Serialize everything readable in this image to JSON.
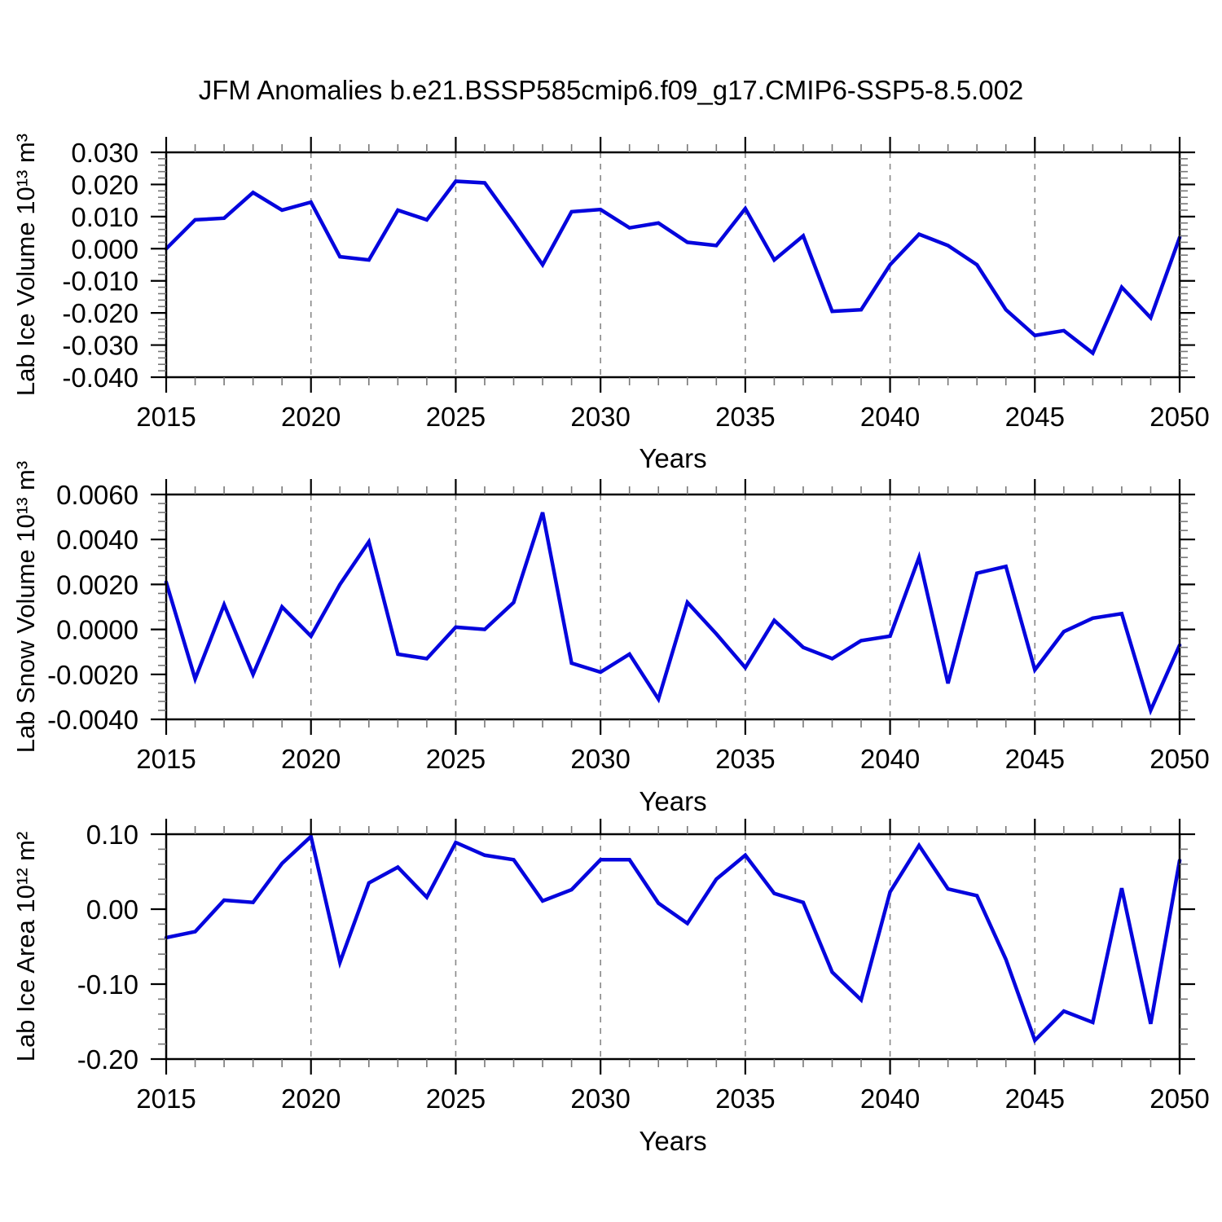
{
  "title": "JFM Anomalies b.e21.BSSP585cmip6.f09_g17.CMIP6-SSP5-8.5.002",
  "line_color": "#0505dd",
  "grid_color": "#888888",
  "axis_color": "#000000",
  "minor_tick_color": "#777777",
  "chart_data": [
    {
      "type": "line",
      "name": "lab-ice-volume",
      "ylabel": "Lab Ice Volume 10¹³ m³",
      "xlabel": "Years",
      "ylim": [
        -0.04,
        0.03
      ],
      "yticks": [
        0.03,
        0.02,
        0.01,
        0.0,
        -0.01,
        -0.02,
        -0.03,
        -0.04
      ],
      "ytick_labels": [
        "0.030",
        "0.020",
        "0.010",
        "0.000",
        "-0.010",
        "-0.020",
        "-0.030",
        "-0.040"
      ],
      "yminor_step": 0.002,
      "xlim": [
        2015,
        2050
      ],
      "xticks": [
        2015,
        2020,
        2025,
        2030,
        2035,
        2040,
        2045,
        2050
      ],
      "xtick_labels": [
        "2015",
        "2020",
        "2025",
        "2030",
        "2035",
        "2040",
        "2045",
        "2050"
      ],
      "xminor_step": 1,
      "grid_x": [
        2020,
        2025,
        2030,
        2035,
        2040,
        2045
      ],
      "grid_on": true,
      "legend": "none",
      "x": [
        2015,
        2016,
        2017,
        2018,
        2019,
        2020,
        2021,
        2022,
        2023,
        2024,
        2025,
        2026,
        2027,
        2028,
        2029,
        2030,
        2031,
        2032,
        2033,
        2034,
        2035,
        2036,
        2037,
        2038,
        2039,
        2040,
        2041,
        2042,
        2043,
        2044,
        2045,
        2046,
        2047,
        2048,
        2049,
        2050
      ],
      "values": [
        0.0,
        0.009,
        0.0095,
        0.0175,
        0.012,
        0.0145,
        -0.0025,
        -0.0035,
        0.012,
        0.009,
        0.021,
        0.0205,
        0.008,
        -0.005,
        0.0115,
        0.0122,
        0.0065,
        0.008,
        0.002,
        0.001,
        0.0125,
        -0.0035,
        0.004,
        -0.0195,
        -0.019,
        -0.005,
        0.0045,
        0.001,
        -0.005,
        -0.019,
        -0.027,
        -0.0255,
        -0.0325,
        -0.012,
        -0.0215,
        0.0035
      ]
    },
    {
      "type": "line",
      "name": "lab-snow-volume",
      "ylabel": "Lab Snow Volume 10¹³ m³",
      "xlabel": "Years",
      "ylim": [
        -0.004,
        0.006
      ],
      "yticks": [
        0.006,
        0.004,
        0.002,
        0.0,
        -0.002,
        -0.004
      ],
      "ytick_labels": [
        "0.0060",
        "0.0040",
        "0.0020",
        "0.0000",
        "-0.0020",
        "-0.0040"
      ],
      "yminor_step": 0.0004,
      "xlim": [
        2015,
        2050
      ],
      "xticks": [
        2015,
        2020,
        2025,
        2030,
        2035,
        2040,
        2045,
        2050
      ],
      "xtick_labels": [
        "2015",
        "2020",
        "2025",
        "2030",
        "2035",
        "2040",
        "2045",
        "2050"
      ],
      "xminor_step": 1,
      "grid_x": [
        2020,
        2025,
        2030,
        2035,
        2040,
        2045
      ],
      "grid_on": true,
      "legend": "none",
      "x": [
        2015,
        2016,
        2017,
        2018,
        2019,
        2020,
        2021,
        2022,
        2023,
        2024,
        2025,
        2026,
        2027,
        2028,
        2029,
        2030,
        2031,
        2032,
        2033,
        2034,
        2035,
        2036,
        2037,
        2038,
        2039,
        2040,
        2041,
        2042,
        2043,
        2044,
        2045,
        2046,
        2047,
        2048,
        2049,
        2050
      ],
      "values": [
        0.0021,
        -0.0022,
        0.0011,
        -0.002,
        0.001,
        -0.0003,
        0.002,
        0.0039,
        -0.0011,
        -0.0013,
        0.0001,
        0.0,
        0.0012,
        0.0052,
        -0.0015,
        -0.0019,
        -0.0011,
        -0.0031,
        0.0012,
        -0.0002,
        -0.0017,
        0.0004,
        -0.0008,
        -0.0013,
        -0.0005,
        -0.0003,
        0.0032,
        -0.0024,
        0.0025,
        0.0028,
        -0.0018,
        -0.0001,
        0.0005,
        0.0007,
        -0.0036,
        -0.0007
      ]
    },
    {
      "type": "line",
      "name": "lab-ice-area",
      "ylabel": "Lab Ice Area 10¹² m²",
      "xlabel": "Years",
      "ylim": [
        -0.2,
        0.1
      ],
      "yticks": [
        0.1,
        0.0,
        -0.1,
        -0.2
      ],
      "ytick_labels": [
        "0.10",
        "0.00",
        "-0.10",
        "-0.20"
      ],
      "yminor_step": 0.02,
      "xlim": [
        2015,
        2050
      ],
      "xticks": [
        2015,
        2020,
        2025,
        2030,
        2035,
        2040,
        2045,
        2050
      ],
      "xtick_labels": [
        "2015",
        "2020",
        "2025",
        "2030",
        "2035",
        "2040",
        "2045",
        "2050"
      ],
      "xminor_step": 1,
      "grid_x": [
        2020,
        2025,
        2030,
        2035,
        2040,
        2045
      ],
      "grid_on": true,
      "legend": "none",
      "x": [
        2015,
        2016,
        2017,
        2018,
        2019,
        2020,
        2021,
        2022,
        2023,
        2024,
        2025,
        2026,
        2027,
        2028,
        2029,
        2030,
        2031,
        2032,
        2033,
        2034,
        2035,
        2036,
        2037,
        2038,
        2039,
        2040,
        2041,
        2042,
        2043,
        2044,
        2045,
        2046,
        2047,
        2048,
        2049,
        2050
      ],
      "values": [
        -0.038,
        -0.03,
        0.012,
        0.009,
        0.061,
        0.097,
        -0.071,
        0.035,
        0.056,
        0.016,
        0.089,
        0.072,
        0.066,
        0.011,
        0.026,
        0.066,
        0.066,
        0.008,
        -0.019,
        0.04,
        0.072,
        0.021,
        0.009,
        -0.084,
        -0.121,
        0.023,
        0.085,
        0.027,
        0.018,
        -0.067,
        -0.175,
        -0.136,
        -0.151,
        0.028,
        -0.153,
        0.065
      ]
    }
  ]
}
